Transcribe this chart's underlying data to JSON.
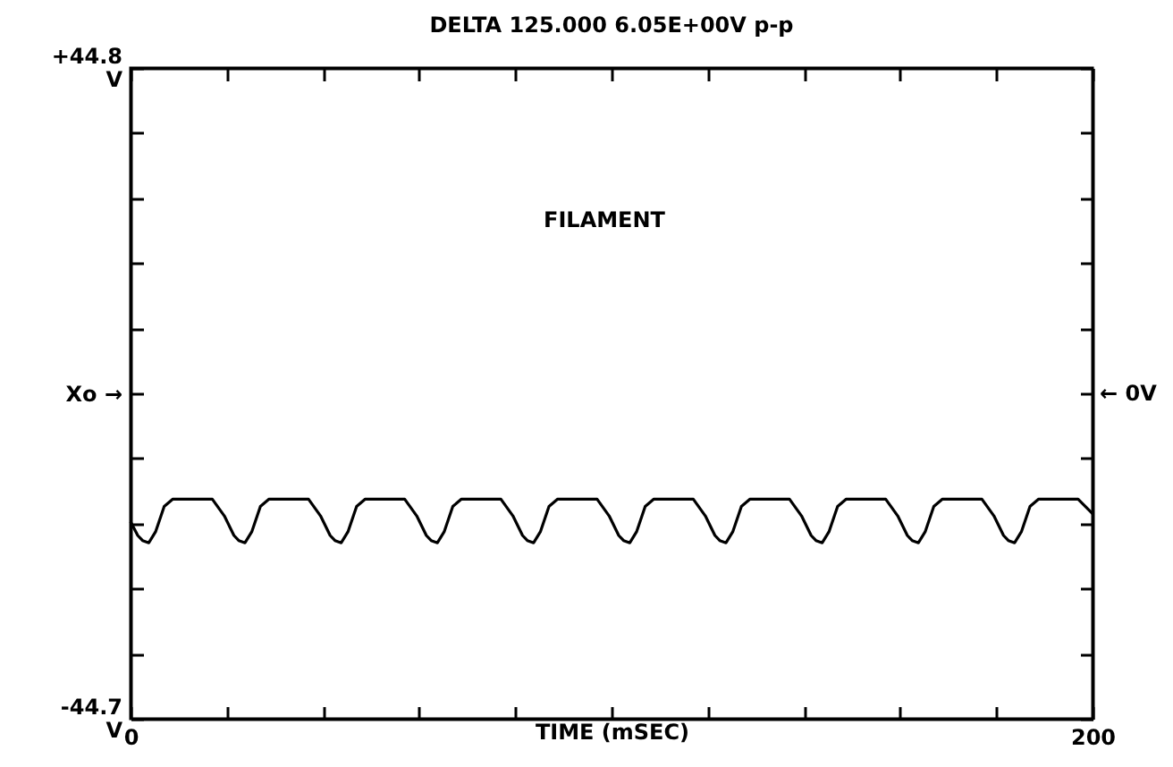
{
  "chart_data": {
    "type": "line",
    "title": "DELTA 125.000 6.05E+00V p-p",
    "xlabel": "TIME (mSEC)",
    "annotations": [
      "FILAMENT",
      "← 0V"
    ],
    "x": [
      0,
      1.5,
      2.5,
      3.8,
      5.2,
      7,
      8.8,
      17,
      19.5,
      21.5,
      22.5,
      23.8,
      25.2,
      27,
      28.8,
      37,
      39.5,
      41.5,
      42.5,
      43.8,
      45.2,
      47,
      48.8,
      57,
      59.5,
      61.5,
      62.5,
      63.8,
      65.2,
      67,
      68.8,
      77,
      79.5,
      81.5,
      82.5,
      83.8,
      85.2,
      87,
      88.8,
      97,
      99.5,
      101.5,
      102.5,
      103.8,
      105.2,
      107,
      108.8,
      117,
      119.5,
      121.5,
      122.5,
      123.8,
      125.2,
      127,
      128.8,
      137,
      139.5,
      141.5,
      142.5,
      143.8,
      145.2,
      147,
      148.8,
      157,
      159.5,
      161.5,
      162.5,
      163.8,
      165.2,
      167,
      168.8,
      177,
      179.5,
      181.5,
      182.5,
      183.8,
      185.2,
      187,
      188.8,
      197,
      200
    ],
    "values": [
      -17.6,
      -19.5,
      -20.2,
      -20.5,
      -19,
      -15.5,
      -14.5,
      -14.5,
      -16.8,
      -19.5,
      -20.2,
      -20.5,
      -19,
      -15.5,
      -14.5,
      -14.5,
      -16.8,
      -19.5,
      -20.2,
      -20.5,
      -19,
      -15.5,
      -14.5,
      -14.5,
      -16.8,
      -19.5,
      -20.2,
      -20.5,
      -19,
      -15.5,
      -14.5,
      -14.5,
      -16.8,
      -19.5,
      -20.2,
      -20.5,
      -19,
      -15.5,
      -14.5,
      -14.5,
      -16.8,
      -19.5,
      -20.2,
      -20.5,
      -19,
      -15.5,
      -14.5,
      -14.5,
      -16.8,
      -19.5,
      -20.2,
      -20.5,
      -19,
      -15.5,
      -14.5,
      -14.5,
      -16.8,
      -19.5,
      -20.2,
      -20.5,
      -19,
      -15.5,
      -14.5,
      -14.5,
      -16.8,
      -19.5,
      -20.2,
      -20.5,
      -19,
      -15.5,
      -14.5,
      -14.5,
      -16.8,
      -19.5,
      -20.2,
      -20.5,
      -19,
      -15.5,
      -14.5,
      -14.5,
      -16.5
    ],
    "color": "#000000",
    "marker": "none",
    "line_style": "solid",
    "grid": false,
    "xlim": [
      0,
      200
    ],
    "xticks": [
      0,
      {
        "value": 20,
        "label": null
      },
      {
        "value": 40,
        "label": null
      },
      {
        "value": 60,
        "label": null
      },
      {
        "value": 80,
        "label": null
      },
      {
        "value": 100,
        "label": null
      },
      {
        "value": 120,
        "label": null
      },
      {
        "value": 140,
        "label": null
      },
      {
        "value": 160,
        "label": null
      },
      {
        "value": 180,
        "label": null
      },
      200
    ],
    "ylim": [
      -44.7,
      44.8
    ],
    "yticks": [
      {
        "value": -44.7,
        "label": "-44.7\nV"
      },
      {
        "value": -35.75,
        "label": null
      },
      {
        "value": -26.8,
        "label": null
      },
      {
        "value": -17.85,
        "label": null
      },
      {
        "value": -8.9,
        "label": null
      },
      {
        "value": 0,
        "label": "Xo →"
      },
      {
        "value": 9,
        "label": null
      },
      {
        "value": 17.95,
        "label": null
      },
      {
        "value": 26.9,
        "label": null
      },
      {
        "value": 35.85,
        "label": null
      },
      {
        "value": 44.8,
        "label": "+44.8\nV"
      }
    ]
  }
}
